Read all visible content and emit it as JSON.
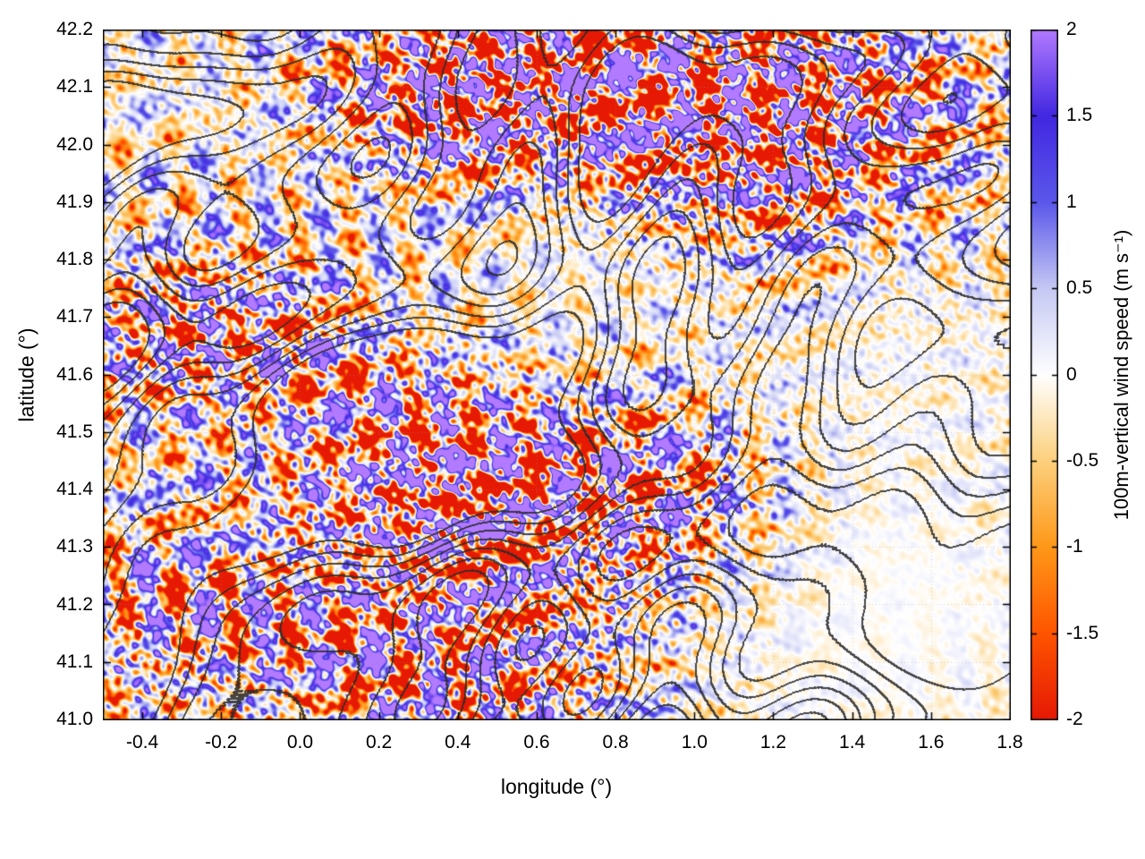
{
  "chart_data": {
    "type": "heatmap",
    "title": "",
    "xlabel": "longitude (°)",
    "ylabel": "latitude (°)",
    "x_range": [
      -0.5,
      1.8
    ],
    "y_range": [
      41.0,
      42.2
    ],
    "x_ticks": [
      -0.4,
      -0.2,
      0,
      0.2,
      0.4,
      0.6,
      0.8,
      1,
      1.2,
      1.4,
      1.6,
      1.8
    ],
    "x_tick_labels": [
      "-0.4",
      "-0.2",
      "0.0",
      "0.2",
      "0.4",
      "0.6",
      "0.8",
      "1.0",
      "1.2",
      "1.4",
      "1.6",
      "1.8"
    ],
    "y_ticks": [
      42.2,
      42.1,
      42,
      41.9,
      41.8,
      41.7,
      41.6,
      41.5,
      41.4,
      41.3,
      41.2,
      41.1,
      41
    ],
    "y_tick_labels": [
      "42.2",
      "42.1",
      "42.0",
      "41.9",
      "41.8",
      "41.7",
      "41.6",
      "41.5",
      "41.4",
      "41.3",
      "41.2",
      "41.1",
      "41.0"
    ],
    "grid": "faint dotted grid at major ticks",
    "border_color": "#000000",
    "colorbar": {
      "label": "100m-vertical wind speed (m s⁻¹)",
      "range": [
        -2,
        2
      ],
      "orientation": "vertical-right",
      "ticks": [
        2,
        1.5,
        1,
        0.5,
        0,
        -0.5,
        -1,
        -1.5,
        -2
      ],
      "tick_labels": [
        "2",
        "1.5",
        "1",
        "0.5",
        "0",
        "-0.5",
        "-1",
        "-1.5",
        "-2"
      ],
      "stops": [
        {
          "value": -2.0,
          "color": [
            230,
            25,
            5
          ]
        },
        {
          "value": -1.5,
          "color": [
            255,
            85,
            0
          ]
        },
        {
          "value": -1.0,
          "color": [
            255,
            152,
            25
          ]
        },
        {
          "value": -0.5,
          "color": [
            252,
            208,
            125
          ]
        },
        {
          "value": 0.0,
          "color": [
            255,
            255,
            255
          ]
        },
        {
          "value": 0.5,
          "color": [
            198,
            201,
            244
          ]
        },
        {
          "value": 1.0,
          "color": [
            92,
            88,
            235
          ]
        },
        {
          "value": 1.5,
          "color": [
            66,
            40,
            225
          ]
        },
        {
          "value": 2.0,
          "color": [
            178,
            122,
            255
          ]
        }
      ]
    },
    "overlay": "terrain elevation contour lines (dark gray, ~2px)",
    "field_description": "filamentary mountain-wave field of updrafts (blue/purple) and downdrafts (orange/red); mostly near zero (white) with intense wave bands in the north-center, a band near 41.7N on the west side, and a band across the south-center; calm pale region in the southeast",
    "features": {
      "high_activity_regions": [
        {
          "lon": 0.85,
          "lat": 42.07,
          "sigma_lon": 0.4,
          "sigma_lat": 0.13,
          "intensity": 1.5
        },
        {
          "lon": 0.4,
          "lat": 42.1,
          "sigma_lon": 0.17,
          "sigma_lat": 0.09,
          "intensity": 1.1
        },
        {
          "lon": -0.22,
          "lat": 41.68,
          "sigma_lon": 0.28,
          "sigma_lat": 0.09,
          "intensity": 1.0
        },
        {
          "lon": 0.55,
          "lat": 41.32,
          "sigma_lon": 0.45,
          "sigma_lat": 0.18,
          "intensity": 1.1
        },
        {
          "lon": 0.35,
          "lat": 41.5,
          "sigma_lon": 0.22,
          "sigma_lat": 0.14,
          "intensity": 0.8
        },
        {
          "lon": 0.95,
          "lat": 41.38,
          "sigma_lon": 0.28,
          "sigma_lat": 0.1,
          "intensity": 0.9
        },
        {
          "lon": 1.2,
          "lat": 42.0,
          "sigma_lon": 0.3,
          "sigma_lat": 0.15,
          "intensity": 0.7
        },
        {
          "lon": 0.45,
          "lat": 41.05,
          "sigma_lon": 0.28,
          "sigma_lat": 0.1,
          "intensity": 0.8
        },
        {
          "lon": -0.35,
          "lat": 41.15,
          "sigma_lon": 0.25,
          "sigma_lat": 0.12,
          "intensity": 0.6
        }
      ],
      "calm_regions": [
        {
          "lon": 1.45,
          "lat": 41.15,
          "sigma_lon": 0.45,
          "sigma_lat": 0.22,
          "suppression": 0.85
        },
        {
          "lon": 0.6,
          "lat": 41.75,
          "sigma_lon": 0.35,
          "sigma_lat": 0.17,
          "suppression": 0.55
        },
        {
          "lon": 1.55,
          "lat": 41.55,
          "sigma_lon": 0.3,
          "sigma_lat": 0.2,
          "suppression": 0.45
        }
      ]
    }
  }
}
